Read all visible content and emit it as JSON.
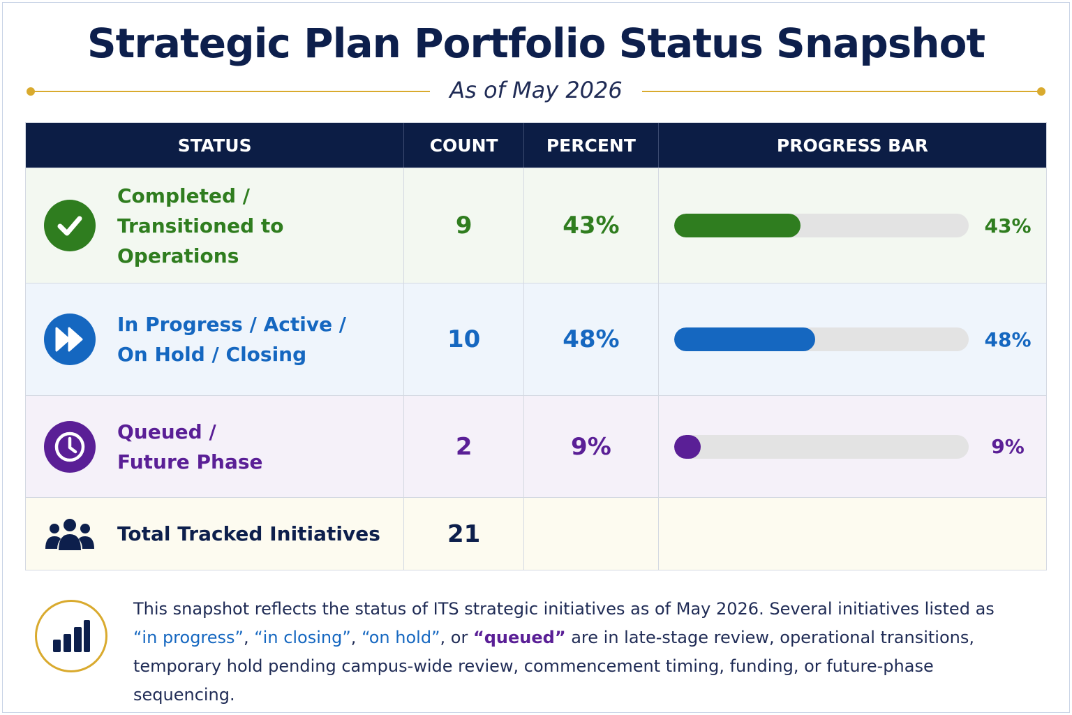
{
  "title": "Strategic Plan Portfolio Status Snapshot",
  "subtitle": "As of May 2026",
  "table": {
    "headers": {
      "status": "STATUS",
      "count": "COUNT",
      "percent": "PERCENT",
      "progress_bar": "PROGRESS BAR"
    },
    "rows": [
      {
        "label_line1": "Completed /",
        "label_line2": "Transitioned to Operations",
        "icon": "check-circle-icon",
        "count": "9",
        "percent": "43%",
        "progress": 0.43,
        "bar_label": "43%",
        "color": "#2f7d1f"
      },
      {
        "label_line1": "In Progress / Active /",
        "label_line2": "On Hold / Closing",
        "icon": "fast-forward-icon",
        "count": "10",
        "percent": "48%",
        "progress": 0.48,
        "bar_label": "48%",
        "color": "#1567c0"
      },
      {
        "label_line1": "Queued /",
        "label_line2": "Future Phase",
        "icon": "clock-icon",
        "count": "2",
        "percent": "9%",
        "progress": 0.09,
        "bar_label": "9%",
        "color": "#5a1f96"
      }
    ],
    "total": {
      "label": "Total Tracked Initiatives",
      "icon": "people-group-icon",
      "count": "21"
    }
  },
  "note": {
    "icon": "bar-chart-icon",
    "text_1": "This snapshot reflects the status of ITS strategic initiatives as of May 2026. Several initiatives listed as",
    "q1": "“in progress”",
    "sep1": ", ",
    "q2": "“in closing”",
    "sep2": ", ",
    "q3": "“on hold”",
    "sep3": ", or ",
    "q4": "“queued”",
    "text_2": " are in late-stage review, operational transitions, temporary hold pending campus-wide review, commencement timing, funding, or future-phase sequencing."
  }
}
